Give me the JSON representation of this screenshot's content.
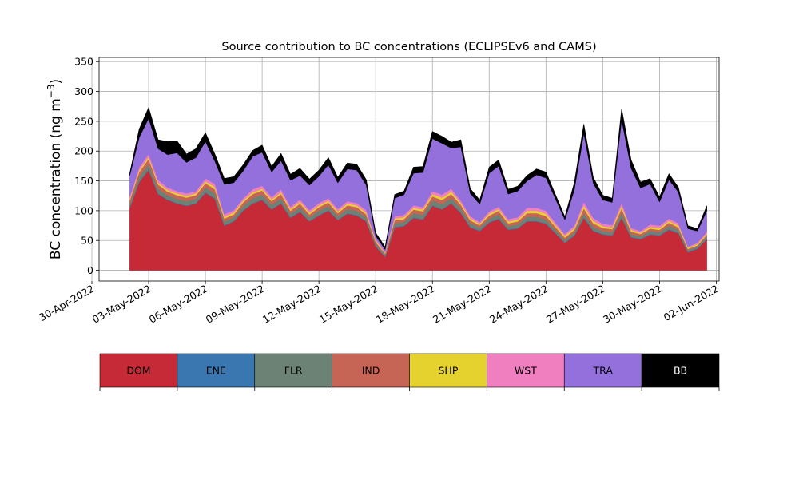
{
  "chart_data": {
    "type": "area",
    "title": "Source contribution to BC concentrations (ECLIPSEv6 and CAMS)",
    "ylabel": "BC concentration (ng m",
    "ylabel_sup": "−3",
    "ylabel_close": ")",
    "xlabel": "",
    "ylim": [
      -18,
      357
    ],
    "xlim": [
      "2022-05-01",
      "2022-06-02"
    ],
    "grid": true,
    "stacked": true,
    "yticks": [
      0,
      50,
      100,
      150,
      200,
      250,
      300,
      350
    ],
    "xticks": [
      "30-Apr-2022",
      "03-May-2022",
      "06-May-2022",
      "09-May-2022",
      "12-May-2022",
      "15-May-2022",
      "18-May-2022",
      "21-May-2022",
      "24-May-2022",
      "27-May-2022",
      "30-May-2022",
      "02-Jun-2022"
    ],
    "legend_placement": "colorbar-below",
    "x": [
      "02-May 00h",
      "02-May 12h",
      "03-May 00h",
      "03-May 12h",
      "04-May 00h",
      "04-May 12h",
      "05-May 00h",
      "05-May 12h",
      "06-May 00h",
      "06-May 12h",
      "07-May 00h",
      "07-May 12h",
      "08-May 00h",
      "08-May 12h",
      "09-May 00h",
      "09-May 12h",
      "10-May 00h",
      "10-May 12h",
      "11-May 00h",
      "11-May 12h",
      "12-May 00h",
      "12-May 12h",
      "13-May 00h",
      "13-May 12h",
      "14-May 00h",
      "14-May 12h",
      "15-May 00h",
      "15-May 12h",
      "16-May 00h",
      "16-May 12h",
      "17-May 00h",
      "17-May 12h",
      "18-May 00h",
      "18-May 12h",
      "19-May 00h",
      "19-May 12h",
      "20-May 00h",
      "20-May 12h",
      "21-May 00h",
      "21-May 12h",
      "22-May 00h",
      "22-May 12h",
      "23-May 00h",
      "23-May 12h",
      "24-May 00h",
      "24-May 12h",
      "25-May 00h",
      "25-May 12h",
      "26-May 00h",
      "26-May 12h",
      "27-May 00h",
      "27-May 12h",
      "28-May 00h",
      "28-May 12h",
      "29-May 00h",
      "29-May 12h",
      "30-May 00h",
      "30-May 12h",
      "31-May 00h",
      "31-May 12h",
      "01-Jun 00h",
      "01-Jun 12h"
    ],
    "series": [
      {
        "name": "DOM",
        "color": "#c62a36",
        "values": [
          105,
          148,
          168,
          128,
          118,
          112,
          108,
          112,
          130,
          120,
          75,
          82,
          100,
          112,
          118,
          102,
          112,
          88,
          98,
          82,
          92,
          100,
          84,
          95,
          92,
          82,
          40,
          22,
          72,
          74,
          88,
          85,
          108,
          102,
          112,
          96,
          72,
          66,
          80,
          86,
          68,
          70,
          82,
          82,
          78,
          62,
          46,
          58,
          88,
          66,
          60,
          58,
          88,
          55,
          52,
          60,
          58,
          68,
          62,
          30,
          36,
          52
        ]
      },
      {
        "name": "ENE",
        "color": "#3a76b0",
        "values": [
          1,
          1,
          1,
          1,
          1,
          1,
          1,
          1,
          1,
          1,
          1,
          1,
          1,
          1,
          1,
          1,
          1,
          1,
          1,
          1,
          1,
          1,
          1,
          1,
          1,
          1,
          1,
          1,
          1,
          1,
          1,
          1,
          1,
          1,
          1,
          1,
          1,
          1,
          1,
          1,
          1,
          1,
          1,
          1,
          1,
          1,
          1,
          1,
          1,
          1,
          1,
          1,
          1,
          1,
          1,
          1,
          1,
          1,
          1,
          1,
          1,
          1
        ]
      },
      {
        "name": "FLR",
        "color": "#6c8274",
        "values": [
          6,
          8,
          9,
          8,
          7,
          7,
          7,
          7,
          8,
          8,
          6,
          6,
          7,
          8,
          8,
          7,
          8,
          6,
          7,
          6,
          7,
          7,
          6,
          7,
          7,
          6,
          4,
          3,
          6,
          6,
          7,
          7,
          8,
          8,
          8,
          7,
          6,
          5,
          6,
          7,
          5,
          6,
          7,
          7,
          6,
          5,
          4,
          5,
          7,
          6,
          5,
          5,
          8,
          5,
          4,
          5,
          5,
          6,
          5,
          3,
          3,
          4
        ]
      },
      {
        "name": "IND",
        "color": "#c66555",
        "values": [
          6,
          8,
          9,
          7,
          6,
          6,
          6,
          6,
          7,
          7,
          5,
          5,
          6,
          7,
          7,
          6,
          7,
          5,
          6,
          5,
          6,
          6,
          5,
          6,
          6,
          5,
          3,
          2,
          5,
          5,
          6,
          6,
          7,
          7,
          7,
          6,
          5,
          4,
          5,
          6,
          5,
          5,
          6,
          6,
          6,
          5,
          4,
          4,
          8,
          6,
          5,
          5,
          7,
          4,
          4,
          4,
          4,
          5,
          4,
          2,
          2,
          3
        ]
      },
      {
        "name": "SHP",
        "color": "#e6d22e",
        "values": [
          2,
          3,
          3,
          3,
          3,
          3,
          3,
          3,
          3,
          4,
          3,
          3,
          3,
          3,
          3,
          3,
          3,
          3,
          3,
          3,
          3,
          3,
          3,
          3,
          3,
          3,
          2,
          1,
          3,
          3,
          3,
          3,
          4,
          4,
          4,
          3,
          3,
          2,
          3,
          3,
          3,
          3,
          4,
          4,
          4,
          3,
          3,
          3,
          5,
          4,
          3,
          3,
          4,
          3,
          2,
          3,
          3,
          3,
          3,
          2,
          2,
          2
        ]
      },
      {
        "name": "WST",
        "color": "#f07fbf",
        "values": [
          4,
          5,
          5,
          5,
          4,
          4,
          4,
          4,
          5,
          5,
          4,
          4,
          4,
          5,
          5,
          4,
          5,
          4,
          4,
          4,
          4,
          4,
          4,
          4,
          4,
          4,
          3,
          2,
          4,
          4,
          4,
          4,
          5,
          5,
          5,
          4,
          4,
          3,
          4,
          4,
          4,
          4,
          5,
          5,
          5,
          4,
          3,
          4,
          6,
          5,
          4,
          4,
          5,
          3,
          3,
          4,
          4,
          4,
          4,
          2,
          2,
          3
        ]
      },
      {
        "name": "TRA",
        "color": "#9370db",
        "values": [
          35,
          50,
          60,
          52,
          55,
          64,
          52,
          56,
          62,
          38,
          50,
          46,
          46,
          55,
          56,
          42,
          48,
          44,
          40,
          42,
          45,
          56,
          44,
          54,
          55,
          42,
          5,
          4,
          30,
          34,
          54,
          58,
          88,
          86,
          68,
          90,
          38,
          30,
          64,
          68,
          42,
          44,
          45,
          55,
          55,
          40,
          24,
          60,
          115,
          58,
          40,
          38,
          140,
          100,
          72,
          68,
          40,
          65,
          52,
          30,
          20,
          35
        ]
      },
      {
        "name": "BB",
        "color": "#000000",
        "values": [
          4,
          14,
          18,
          15,
          22,
          20,
          14,
          15,
          15,
          12,
          10,
          10,
          10,
          10,
          12,
          9,
          12,
          10,
          12,
          10,
          10,
          12,
          9,
          10,
          10,
          9,
          5,
          4,
          6,
          6,
          10,
          10,
          12,
          12,
          10,
          12,
          8,
          7,
          10,
          10,
          8,
          8,
          9,
          10,
          10,
          7,
          5,
          12,
          15,
          10,
          8,
          7,
          18,
          14,
          10,
          9,
          8,
          10,
          8,
          5,
          4,
          8
        ]
      }
    ],
    "colorbar": {
      "labels": [
        "DOM",
        "ENE",
        "FLR",
        "IND",
        "SHP",
        "WST",
        "TRA",
        "BB"
      ],
      "colors": [
        "#c62a36",
        "#3a76b0",
        "#6c8274",
        "#c66555",
        "#e6d22e",
        "#f07fbf",
        "#9370db",
        "#000000"
      ]
    }
  }
}
